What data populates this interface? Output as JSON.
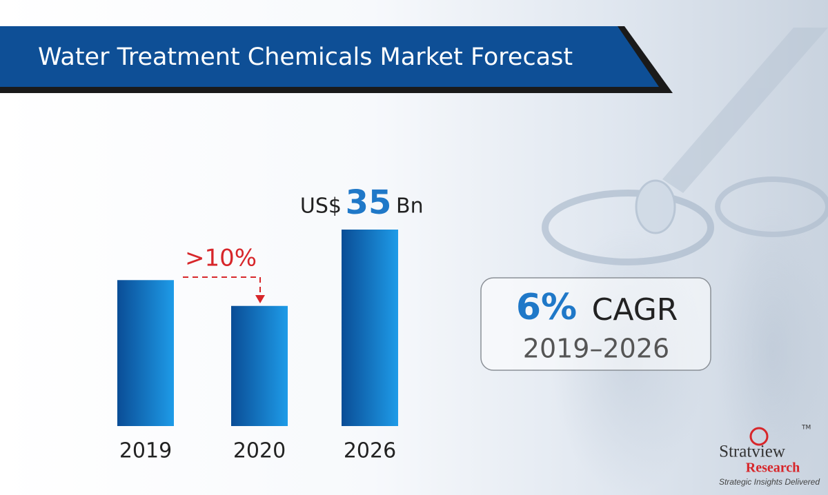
{
  "chart_data": {
    "type": "bar",
    "title": "Water Treatment Chemicals Market Forecast",
    "categories": [
      "2019",
      "2020",
      "2026"
    ],
    "values": [
      26.0,
      21.4,
      35
    ],
    "value_prefix": "US$",
    "value_unit": "Bn",
    "colors": [
      "#0a4d96",
      "#1e9be8"
    ],
    "annotation": ">10%",
    "callout": {
      "value": "6%",
      "label": "CAGR",
      "period": "2019–2026"
    }
  },
  "logo": {
    "name": "Stratview",
    "trademark": "TM",
    "subtitle": "Research",
    "tagline": "Strategic Insights Delivered"
  }
}
